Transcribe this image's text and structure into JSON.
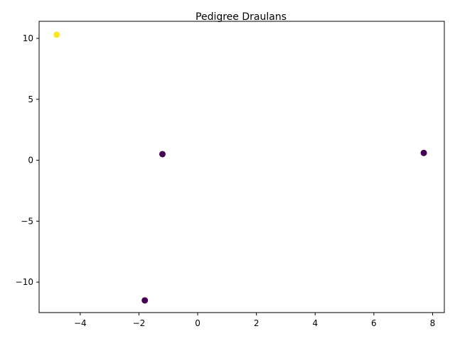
{
  "chart_data": {
    "type": "scatter",
    "title": "Pedigree Draulans",
    "xlabel": "",
    "ylabel": "",
    "xlim": [
      -5.4,
      8.4
    ],
    "ylim": [
      -12.5,
      11.4
    ],
    "x_ticks": [
      -4,
      -2,
      0,
      2,
      4,
      6,
      8
    ],
    "y_ticks": [
      -10,
      -5,
      0,
      5,
      10
    ],
    "x_tick_labels": [
      "−4",
      "−2",
      "0",
      "2",
      "4",
      "6",
      "8"
    ],
    "y_tick_labels": [
      "−10",
      "−5",
      "0",
      "5",
      "10"
    ],
    "grid": false,
    "points": [
      {
        "x": -4.8,
        "y": 10.3,
        "color": "#fde725"
      },
      {
        "x": -1.2,
        "y": 0.5,
        "color": "#440154"
      },
      {
        "x": 7.7,
        "y": 0.6,
        "color": "#440154"
      },
      {
        "x": -1.8,
        "y": -11.5,
        "color": "#440154"
      }
    ]
  }
}
